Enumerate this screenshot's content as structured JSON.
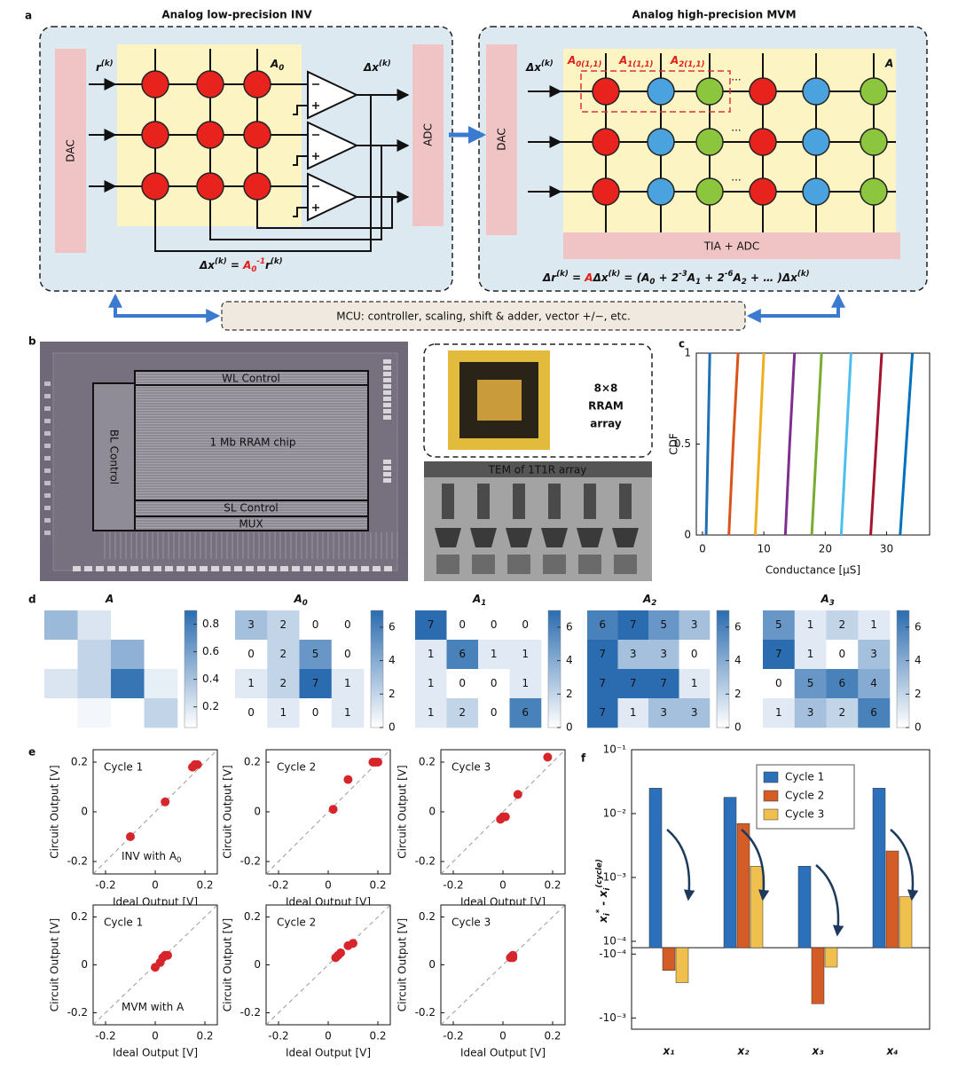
{
  "panel_labels": [
    "a",
    "b",
    "c",
    "d",
    "e",
    "f"
  ],
  "panel_a": {
    "inv": {
      "title": "Analog low-precision INV",
      "dac": "DAC",
      "input": [
        "r",
        "(k)"
      ],
      "matrix": [
        "A",
        "0"
      ],
      "output": [
        "Δx",
        "(k)"
      ],
      "adc": "ADC",
      "formula": [
        "Δx",
        "(k)",
        " = ",
        "A",
        "0",
        "-1",
        "r",
        "(k)"
      ]
    },
    "mvm": {
      "title": "Analog high-precision MVM",
      "dac": "DAC",
      "input": [
        "Δx",
        "(k)"
      ],
      "slices": [
        [
          "A",
          "0(1,1)"
        ],
        [
          "A",
          "1(1,1)"
        ],
        [
          "A",
          "2(1,1)"
        ]
      ],
      "matrix": "A",
      "ellipsis": "...",
      "readout": "TIA + ADC",
      "formula": [
        "Δr",
        "(k)",
        " = ",
        "A",
        "Δx",
        "(k)",
        " = (",
        "A",
        "0",
        " + 2",
        "-3",
        "A",
        "1",
        " + 2",
        "-6",
        "A",
        "2",
        " + … )",
        "Δx",
        "(k)"
      ]
    },
    "mcu": "MCU: controller, scaling, shift & adder, vector +/−, etc."
  },
  "panel_b": {
    "chip": {
      "wl": "WL Control",
      "bl": "BL Control",
      "array": "1 Mb RRAM chip",
      "sl": "SL Control",
      "mux": "MUX"
    },
    "package": [
      "8×8",
      "RRAM",
      "array"
    ],
    "tem": "TEM of 1T1R array"
  },
  "chart_data": [
    {
      "type": "line",
      "xlabel": "Conductance [μS]",
      "ylabel": "CDF",
      "xlim": [
        -1,
        37
      ],
      "xticks": [
        0,
        10,
        20,
        30
      ],
      "ylim": [
        0,
        1
      ],
      "yticks": [
        0,
        0.5,
        1
      ],
      "series": [
        {
          "color": "#1f6fb5",
          "x": [
            0.6,
            0.9,
            1.2
          ],
          "values": [
            0,
            0.5,
            1
          ]
        },
        {
          "color": "#d9541a",
          "x": [
            4.3,
            5.0,
            5.8
          ],
          "values": [
            0,
            0.5,
            1
          ]
        },
        {
          "color": "#edb120",
          "x": [
            8.6,
            9.3,
            10.0
          ],
          "values": [
            0,
            0.5,
            1
          ]
        },
        {
          "color": "#7e2f8e",
          "x": [
            13.5,
            14.2,
            15.0
          ],
          "values": [
            0,
            0.5,
            1
          ]
        },
        {
          "color": "#77ac30",
          "x": [
            17.8,
            18.6,
            19.4
          ],
          "values": [
            0,
            0.5,
            1
          ]
        },
        {
          "color": "#4dbeee",
          "x": [
            22.6,
            23.4,
            24.2
          ],
          "values": [
            0,
            0.5,
            1
          ]
        },
        {
          "color": "#a2142f",
          "x": [
            27.4,
            28.3,
            29.2
          ],
          "values": [
            0,
            0.5,
            1
          ]
        },
        {
          "color": "#0072bd",
          "x": [
            32.2,
            33.2,
            34.2
          ],
          "values": [
            0,
            0.5,
            1
          ]
        }
      ]
    },
    {
      "type": "heatmap",
      "title": [
        "A"
      ],
      "annotate": false,
      "clim": [
        0.05,
        0.9
      ],
      "cticks": [
        0.2,
        0.4,
        0.6,
        0.8
      ],
      "values": [
        [
          0.45,
          0.2,
          0.05,
          0.05
        ],
        [
          0.05,
          0.3,
          0.5,
          0.05
        ],
        [
          0.2,
          0.3,
          0.85,
          0.15
        ],
        [
          0.05,
          0.1,
          0.05,
          0.3
        ]
      ]
    },
    {
      "type": "heatmap",
      "title": [
        "A",
        "0"
      ],
      "annotate": true,
      "clim": [
        0,
        7
      ],
      "cticks": [
        0,
        2,
        4,
        6
      ],
      "values": [
        [
          3,
          2,
          0,
          0
        ],
        [
          0,
          2,
          5,
          0
        ],
        [
          1,
          2,
          7,
          1
        ],
        [
          0,
          1,
          0,
          1
        ]
      ]
    },
    {
      "type": "heatmap",
      "title": [
        "A",
        "1"
      ],
      "annotate": true,
      "clim": [
        0,
        7
      ],
      "cticks": [
        0,
        2,
        4,
        6
      ],
      "values": [
        [
          7,
          0,
          0,
          0
        ],
        [
          1,
          6,
          1,
          1
        ],
        [
          1,
          0,
          0,
          1
        ],
        [
          1,
          2,
          0,
          6
        ]
      ]
    },
    {
      "type": "heatmap",
      "title": [
        "A",
        "2"
      ],
      "annotate": true,
      "clim": [
        0,
        7
      ],
      "cticks": [
        0,
        2,
        4,
        6
      ],
      "values": [
        [
          6,
          7,
          5,
          3
        ],
        [
          7,
          3,
          3,
          0
        ],
        [
          7,
          7,
          7,
          1
        ],
        [
          7,
          1,
          3,
          3
        ]
      ]
    },
    {
      "type": "heatmap",
      "title": [
        "A",
        "3"
      ],
      "annotate": true,
      "clim": [
        0,
        7
      ],
      "cticks": [
        0,
        2,
        4,
        6
      ],
      "values": [
        [
          5,
          1,
          2,
          1
        ],
        [
          7,
          1,
          0,
          3
        ],
        [
          0,
          5,
          6,
          4
        ],
        [
          1,
          3,
          2,
          6
        ]
      ]
    },
    {
      "type": "scatter",
      "title": "Cycle 1",
      "annotation": [
        "INV with ",
        "A",
        "0"
      ],
      "xlabel": "Ideal Output [V]",
      "ylabel": "Circuit Output [V]",
      "color": "#d7262b",
      "xlim": [
        -0.25,
        0.25
      ],
      "ylim": [
        -0.25,
        0.25
      ],
      "xticks": [
        -0.2,
        0,
        0.2
      ],
      "yticks": [
        -0.2,
        0,
        0.2
      ],
      "x": [
        -0.1,
        0.04,
        0.15,
        0.16,
        0.17
      ],
      "values": [
        -0.1,
        0.04,
        0.18,
        0.19,
        0.19
      ]
    },
    {
      "type": "scatter",
      "title": "Cycle 2",
      "xlabel": "Ideal Output [V]",
      "ylabel": "Circuit Output [V]",
      "color": "#d7262b",
      "xlim": [
        -0.25,
        0.25
      ],
      "ylim": [
        -0.25,
        0.25
      ],
      "xticks": [
        -0.2,
        0,
        0.2
      ],
      "yticks": [
        -0.2,
        0,
        0.2
      ],
      "x": [
        0.02,
        0.08,
        0.18,
        0.19,
        0.2
      ],
      "values": [
        0.01,
        0.13,
        0.2,
        0.2,
        0.2
      ]
    },
    {
      "type": "scatter",
      "title": "Cycle 3",
      "xlabel": "Ideal Output [V]",
      "ylabel": "Circuit Output [V]",
      "color": "#d7262b",
      "xlim": [
        -0.25,
        0.25
      ],
      "ylim": [
        -0.25,
        0.25
      ],
      "xticks": [
        -0.2,
        0,
        0.2
      ],
      "yticks": [
        -0.2,
        0,
        0.2
      ],
      "x": [
        -0.01,
        0,
        0.01,
        0.06,
        0.18
      ],
      "values": [
        -0.03,
        -0.02,
        -0.02,
        0.07,
        0.22
      ]
    },
    {
      "type": "scatter",
      "title": "Cycle 1",
      "annotation": [
        "MVM with ",
        "A"
      ],
      "xlabel": "Ideal Output [V]",
      "ylabel": "Circuit Output [V]",
      "color": "#d7262b",
      "xlim": [
        -0.25,
        0.25
      ],
      "ylim": [
        -0.25,
        0.25
      ],
      "xticks": [
        -0.2,
        0,
        0.2
      ],
      "yticks": [
        -0.2,
        0,
        0.2
      ],
      "x": [
        0,
        0.02,
        0.03,
        0.04,
        0.05
      ],
      "values": [
        -0.01,
        0.01,
        0.03,
        0.04,
        0.04
      ]
    },
    {
      "type": "scatter",
      "title": "Cycle 2",
      "xlabel": "Ideal Output [V]",
      "ylabel": "Circuit Output [V]",
      "color": "#d7262b",
      "xlim": [
        -0.25,
        0.25
      ],
      "ylim": [
        -0.25,
        0.25
      ],
      "xticks": [
        -0.2,
        0,
        0.2
      ],
      "yticks": [
        -0.2,
        0,
        0.2
      ],
      "x": [
        0.03,
        0.04,
        0.05,
        0.08,
        0.1
      ],
      "values": [
        0.03,
        0.04,
        0.05,
        0.08,
        0.09
      ]
    },
    {
      "type": "scatter",
      "title": "Cycle 3",
      "xlabel": "Ideal Output [V]",
      "ylabel": "Circuit Output [V]",
      "color": "#d7262b",
      "xlim": [
        -0.25,
        0.25
      ],
      "ylim": [
        -0.25,
        0.25
      ],
      "xticks": [
        -0.2,
        0,
        0.2
      ],
      "yticks": [
        -0.2,
        0,
        0.2
      ],
      "x": [
        0.03,
        0.035,
        0.04,
        0.04
      ],
      "values": [
        0.03,
        0.035,
        0.03,
        0.04
      ]
    },
    {
      "type": "bar",
      "yscale": "symlog",
      "ylabel": [
        "x",
        "i",
        "*",
        " - ",
        "x",
        "i",
        "(cycle)"
      ],
      "categories": [
        "x₁",
        "x₂",
        "x₃",
        "x₄"
      ],
      "ylim": [
        -0.0015,
        0.1
      ],
      "yticks": [
        {
          "value": 0.1,
          "label": "10⁻¹"
        },
        {
          "value": 0.01,
          "label": "10⁻²"
        },
        {
          "value": 0.001,
          "label": "10⁻³"
        },
        {
          "value": 0.0001,
          "label": "10⁻⁴"
        },
        {
          "value": -0.0001,
          "label": "-10⁻⁴"
        },
        {
          "value": -0.001,
          "label": "-10⁻³"
        }
      ],
      "legend": "upper center",
      "series": [
        {
          "name": "Cycle 1",
          "color": "#2c6fbb",
          "values": [
            0.025,
            0.018,
            0.0015,
            0.025
          ]
        },
        {
          "name": "Cycle 2",
          "color": "#d45d27",
          "values": [
            -0.00018,
            0.007,
            -0.0006,
            0.0026
          ]
        },
        {
          "name": "Cycle 3",
          "color": "#f0c04e",
          "values": [
            -0.00028,
            0.0015,
            -0.00016,
            0.0005
          ]
        }
      ]
    }
  ]
}
